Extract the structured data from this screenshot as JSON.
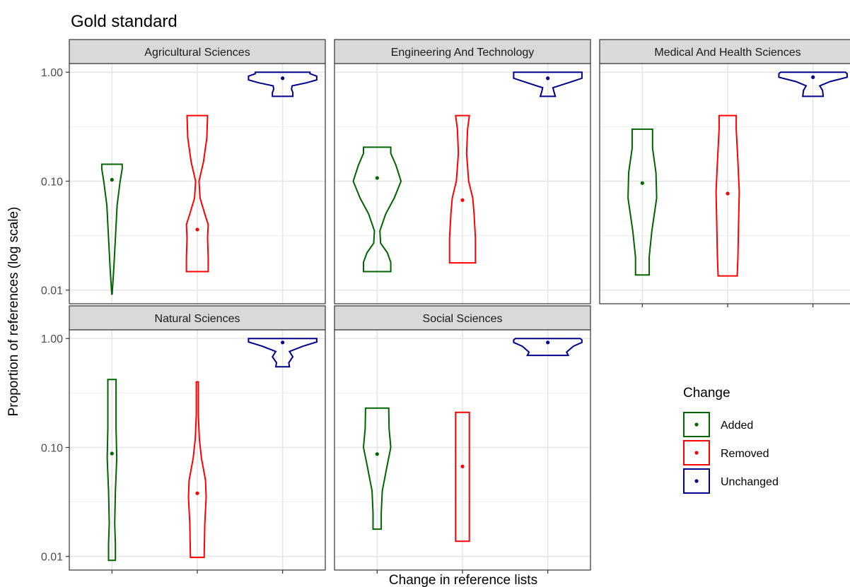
{
  "chart_data": {
    "type": "violin",
    "title": "Gold standard",
    "xlabel": "Change in reference lists",
    "ylabel": "Proportion of references (log scale)",
    "y_scale": "log10",
    "ylim": [
      0.0075,
      1.2
    ],
    "y_ticks": [
      {
        "value": 1.0,
        "label": "1.00"
      },
      {
        "value": 0.1,
        "label": "0.10"
      },
      {
        "value": 0.01,
        "label": "0.01"
      }
    ],
    "x_categories": [
      "Added",
      "Removed",
      "Unchanged"
    ],
    "x_tick_labels_shown": false,
    "grid": true,
    "facets": {
      "columns": 3,
      "rows": 2
    },
    "legend": {
      "title": "Change",
      "position": "right",
      "entries": [
        {
          "label": "Added",
          "color": "#006400"
        },
        {
          "label": "Removed",
          "color": "#ff0000"
        },
        {
          "label": "Unchanged",
          "color": "#00008b"
        }
      ]
    },
    "panels": [
      {
        "title": "Agricultural Sciences",
        "series": [
          {
            "name": "Added",
            "median": 0.103,
            "profile": [
              [
                0.0092,
                0.006
              ],
              [
                0.015,
                0.05
              ],
              [
                0.03,
                0.1
              ],
              [
                0.06,
                0.15
              ],
              [
                0.1,
                0.24
              ],
              [
                0.13,
                0.3
              ],
              [
                0.143,
                0.3
              ]
            ]
          },
          {
            "name": "Removed",
            "median": 0.036,
            "profile": [
              [
                0.0148,
                0.32
              ],
              [
                0.02,
                0.32
              ],
              [
                0.03,
                0.3
              ],
              [
                0.04,
                0.32
              ],
              [
                0.05,
                0.22
              ],
              [
                0.07,
                0.08
              ],
              [
                0.1,
                0.05
              ],
              [
                0.15,
                0.18
              ],
              [
                0.25,
                0.28
              ],
              [
                0.4,
                0.3
              ]
            ]
          },
          {
            "name": "Unchanged",
            "median": 0.88,
            "profile": [
              [
                0.6,
                0.3
              ],
              [
                0.65,
                0.3
              ],
              [
                0.7,
                0.26
              ],
              [
                0.75,
                0.28
              ],
              [
                0.8,
                0.7
              ],
              [
                0.85,
                1.0
              ],
              [
                0.92,
                1.0
              ],
              [
                0.97,
                0.8
              ],
              [
                1.0,
                0.8
              ]
            ]
          }
        ]
      },
      {
        "title": "Engineering And Technology",
        "series": [
          {
            "name": "Added",
            "median": 0.107,
            "profile": [
              [
                0.0148,
                0.4
              ],
              [
                0.018,
                0.4
              ],
              [
                0.022,
                0.3
              ],
              [
                0.027,
                0.1
              ],
              [
                0.035,
                0.08
              ],
              [
                0.05,
                0.25
              ],
              [
                0.07,
                0.5
              ],
              [
                0.1,
                0.7
              ],
              [
                0.14,
                0.55
              ],
              [
                0.18,
                0.4
              ],
              [
                0.205,
                0.4
              ]
            ]
          },
          {
            "name": "Removed",
            "median": 0.067,
            "profile": [
              [
                0.0178,
                0.38
              ],
              [
                0.03,
                0.38
              ],
              [
                0.05,
                0.34
              ],
              [
                0.07,
                0.3
              ],
              [
                0.1,
                0.18
              ],
              [
                0.18,
                0.12
              ],
              [
                0.3,
                0.15
              ],
              [
                0.4,
                0.2
              ]
            ]
          },
          {
            "name": "Unchanged",
            "median": 0.88,
            "profile": [
              [
                0.6,
                0.22
              ],
              [
                0.66,
                0.18
              ],
              [
                0.72,
                0.15
              ],
              [
                0.8,
                0.6
              ],
              [
                0.88,
                1.0
              ],
              [
                0.95,
                1.0
              ],
              [
                1.0,
                1.0
              ]
            ]
          }
        ]
      },
      {
        "title": "Medical And Health Sciences",
        "series": [
          {
            "name": "Added",
            "median": 0.096,
            "profile": [
              [
                0.0138,
                0.2
              ],
              [
                0.02,
                0.2
              ],
              [
                0.035,
                0.28
              ],
              [
                0.07,
                0.42
              ],
              [
                0.12,
                0.4
              ],
              [
                0.2,
                0.3
              ],
              [
                0.3,
                0.3
              ]
            ]
          },
          {
            "name": "Removed",
            "median": 0.077,
            "profile": [
              [
                0.0135,
                0.28
              ],
              [
                0.02,
                0.3
              ],
              [
                0.04,
                0.32
              ],
              [
                0.08,
                0.34
              ],
              [
                0.15,
                0.3
              ],
              [
                0.3,
                0.25
              ],
              [
                0.4,
                0.25
              ]
            ]
          },
          {
            "name": "Unchanged",
            "median": 0.9,
            "profile": [
              [
                0.6,
                0.3
              ],
              [
                0.68,
                0.28
              ],
              [
                0.75,
                0.2
              ],
              [
                0.82,
                0.5
              ],
              [
                0.9,
                1.0
              ],
              [
                0.97,
                1.0
              ],
              [
                1.0,
                0.95
              ]
            ]
          }
        ]
      },
      {
        "title": "Natural Sciences",
        "series": [
          {
            "name": "Added",
            "median": 0.088,
            "profile": [
              [
                0.0092,
                0.1
              ],
              [
                0.013,
                0.1
              ],
              [
                0.02,
                0.08
              ],
              [
                0.04,
                0.1
              ],
              [
                0.08,
                0.14
              ],
              [
                0.15,
                0.12
              ],
              [
                0.3,
                0.12
              ],
              [
                0.42,
                0.12
              ]
            ]
          },
          {
            "name": "Removed",
            "median": 0.038,
            "profile": [
              [
                0.0098,
                0.2
              ],
              [
                0.02,
                0.22
              ],
              [
                0.035,
                0.26
              ],
              [
                0.05,
                0.24
              ],
              [
                0.08,
                0.12
              ],
              [
                0.12,
                0.06
              ],
              [
                0.2,
                0.03
              ],
              [
                0.4,
                0.03
              ]
            ]
          },
          {
            "name": "Unchanged",
            "median": 0.92,
            "profile": [
              [
                0.55,
                0.2
              ],
              [
                0.6,
                0.18
              ],
              [
                0.68,
                0.3
              ],
              [
                0.76,
                0.2
              ],
              [
                0.85,
                0.6
              ],
              [
                0.93,
                1.0
              ],
              [
                1.0,
                1.0
              ]
            ]
          }
        ]
      },
      {
        "title": "Social Sciences",
        "series": [
          {
            "name": "Added",
            "median": 0.087,
            "profile": [
              [
                0.0178,
                0.12
              ],
              [
                0.025,
                0.12
              ],
              [
                0.04,
                0.15
              ],
              [
                0.07,
                0.3
              ],
              [
                0.1,
                0.4
              ],
              [
                0.15,
                0.35
              ],
              [
                0.23,
                0.34
              ]
            ]
          },
          {
            "name": "Removed",
            "median": 0.067,
            "profile": [
              [
                0.0138,
                0.2
              ],
              [
                0.03,
                0.2
              ],
              [
                0.06,
                0.2
              ],
              [
                0.1,
                0.2
              ],
              [
                0.15,
                0.2
              ],
              [
                0.21,
                0.2
              ]
            ]
          },
          {
            "name": "Unchanged",
            "median": 0.92,
            "profile": [
              [
                0.7,
                0.6
              ],
              [
                0.75,
                0.55
              ],
              [
                0.85,
                0.75
              ],
              [
                0.92,
                1.0
              ],
              [
                0.97,
                1.0
              ],
              [
                1.0,
                0.95
              ]
            ]
          }
        ]
      }
    ]
  }
}
